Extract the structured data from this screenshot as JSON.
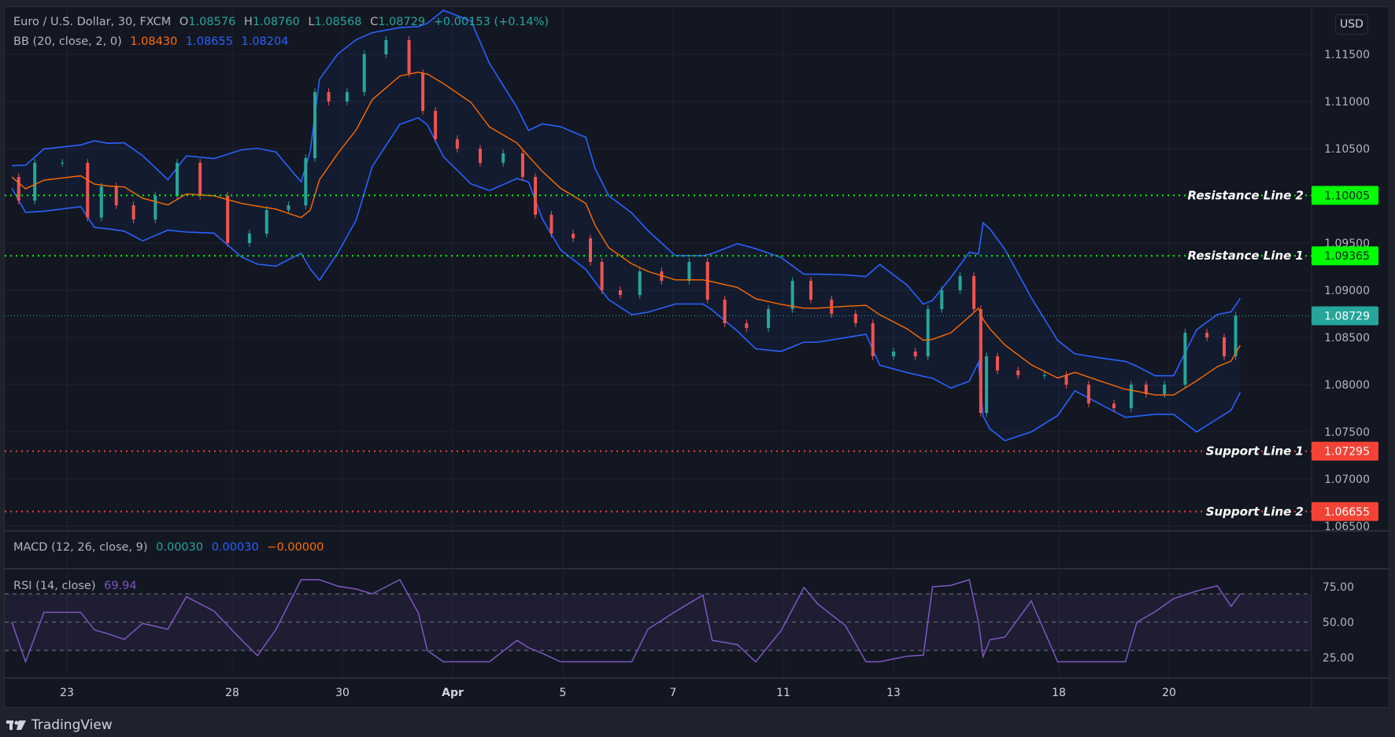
{
  "header": {
    "symbol": "Euro / U.S. Dollar, 30, FXCM",
    "open_label": "O",
    "open": "1.08576",
    "high_label": "H",
    "high": "1.08760",
    "low_label": "L",
    "low": "1.08568",
    "close_label": "C",
    "close": "1.08729",
    "change": "+0.00153 (+0.14%)"
  },
  "bb": {
    "label": "BB (20, close, 2, 0)",
    "basis": "1.08430",
    "upper": "1.08655",
    "lower": "1.08204"
  },
  "macd": {
    "label": "MACD (12, 26, close, 9)",
    "macd": "0.00030",
    "signal": "0.00030",
    "hist": "−0.00000"
  },
  "rsi": {
    "label": "RSI (14, close)",
    "value": "69.94"
  },
  "currency": "USD",
  "colors": {
    "up": "#26a69a",
    "down": "#ef5350",
    "bb_basis": "#ff6d00",
    "bb_band": "#2962ff",
    "rsi": "#7e57c2",
    "resistance": "#00ff00",
    "support": "#f44336",
    "last_price": "#26a69a"
  },
  "levels": [
    {
      "label": "Resistance Line 2",
      "price": "1.10005",
      "kind": "resistance"
    },
    {
      "label": "Resistance Line 1",
      "price": "1.09365",
      "kind": "resistance"
    },
    {
      "label": "Support Line 1",
      "price": "1.07295",
      "kind": "support"
    },
    {
      "label": "Support Line 2",
      "price": "1.06655",
      "kind": "support"
    }
  ],
  "last_price": "1.08729",
  "footer": {
    "brand": "TradingView"
  },
  "chart_data": {
    "type": "line",
    "title": "Euro / U.S. Dollar, 30, FXCM",
    "y_ticks": [
      "1.11500",
      "1.11000",
      "1.10500",
      "1.09500",
      "1.09000",
      "1.08500",
      "1.08000",
      "1.07500",
      "1.07000",
      "1.06500"
    ],
    "ylim": [
      1.065,
      1.1195
    ],
    "x_ticks": [
      {
        "label": "23",
        "date": "2023-03-23 00:00"
      },
      {
        "label": "28",
        "date": "2023-03-28 00:00"
      },
      {
        "label": "30",
        "date": "2023-03-30 00:00"
      },
      {
        "label": "Apr",
        "date": "2023-04-03 00:00"
      },
      {
        "label": "5",
        "date": "2023-04-05 00:00"
      },
      {
        "label": "7",
        "date": "2023-04-07 00:00"
      },
      {
        "label": "11",
        "date": "2023-04-11 00:00"
      },
      {
        "label": "13",
        "date": "2023-04-13 00:00"
      },
      {
        "label": "18",
        "date": "2023-04-18 00:00"
      },
      {
        "label": "20",
        "date": "2023-04-20 00:00"
      }
    ],
    "rsi_ticks": [
      "75.00",
      "50.00",
      "25.00"
    ],
    "rsi_band": [
      30,
      70
    ],
    "grid": true,
    "series": [
      {
        "x": "2023-03-22 00:00",
        "y": 1.102
      },
      {
        "x": "2023-03-22 06:00",
        "y": 1.0995
      },
      {
        "x": "2023-03-22 14:00",
        "y": 1.1035
      },
      {
        "x": "2023-03-23 06:00",
        "y": 1.1035
      },
      {
        "x": "2023-03-23 12:00",
        "y": 1.0977
      },
      {
        "x": "2023-03-23 18:00",
        "y": 1.101
      },
      {
        "x": "2023-03-24 01:00",
        "y": 1.099
      },
      {
        "x": "2023-03-24 09:00",
        "y": 1.0975
      },
      {
        "x": "2023-03-24 20:00",
        "y": 1.1
      },
      {
        "x": "2023-03-27 04:00",
        "y": 1.1035
      },
      {
        "x": "2023-03-27 16:00",
        "y": 1.1
      },
      {
        "x": "2023-03-28 04:00",
        "y": 1.095
      },
      {
        "x": "2023-03-28 11:00",
        "y": 1.096
      },
      {
        "x": "2023-03-28 19:00",
        "y": 1.0985
      },
      {
        "x": "2023-03-29 06:00",
        "y": 1.099
      },
      {
        "x": "2023-03-29 10:00",
        "y": 1.104
      },
      {
        "x": "2023-03-29 14:00",
        "y": 1.111
      },
      {
        "x": "2023-03-29 22:00",
        "y": 1.11
      },
      {
        "x": "2023-03-30 06:00",
        "y": 1.111
      },
      {
        "x": "2023-03-30 13:00",
        "y": 1.115
      },
      {
        "x": "2023-03-31 01:00",
        "y": 1.1165
      },
      {
        "x": "2023-03-31 09:00",
        "y": 1.113
      },
      {
        "x": "2023-03-31 13:00",
        "y": 1.109
      },
      {
        "x": "2023-03-31 20:00",
        "y": 1.106
      },
      {
        "x": "2023-04-03 08:00",
        "y": 1.105
      },
      {
        "x": "2023-04-03 16:00",
        "y": 1.1035
      },
      {
        "x": "2023-04-04 04:00",
        "y": 1.1045
      },
      {
        "x": "2023-04-04 09:00",
        "y": 1.102
      },
      {
        "x": "2023-04-04 15:00",
        "y": 1.098
      },
      {
        "x": "2023-04-04 23:00",
        "y": 1.096
      },
      {
        "x": "2023-04-05 10:00",
        "y": 1.0955
      },
      {
        "x": "2023-04-05 14:00",
        "y": 1.093
      },
      {
        "x": "2023-04-05 20:00",
        "y": 1.09
      },
      {
        "x": "2023-04-06 06:00",
        "y": 1.0895
      },
      {
        "x": "2023-04-06 13:00",
        "y": 1.092
      },
      {
        "x": "2023-04-07 01:00",
        "y": 1.091
      },
      {
        "x": "2023-04-07 13:00",
        "y": 1.093
      },
      {
        "x": "2023-04-07 17:00",
        "y": 1.089
      },
      {
        "x": "2023-04-10 04:00",
        "y": 1.0865
      },
      {
        "x": "2023-04-10 12:00",
        "y": 1.086
      },
      {
        "x": "2023-04-10 23:00",
        "y": 1.088
      },
      {
        "x": "2023-04-11 09:00",
        "y": 1.091
      },
      {
        "x": "2023-04-11 15:00",
        "y": 1.089
      },
      {
        "x": "2023-04-12 03:00",
        "y": 1.0875
      },
      {
        "x": "2023-04-12 12:00",
        "y": 1.0865
      },
      {
        "x": "2023-04-12 18:00",
        "y": 1.083
      },
      {
        "x": "2023-04-13 06:00",
        "y": 1.0835
      },
      {
        "x": "2023-04-13 13:00",
        "y": 1.083
      },
      {
        "x": "2023-04-13 17:00",
        "y": 1.088
      },
      {
        "x": "2023-04-14 01:00",
        "y": 1.09
      },
      {
        "x": "2023-04-14 09:00",
        "y": 1.0915
      },
      {
        "x": "2023-04-14 13:00",
        "y": 1.088
      },
      {
        "x": "2023-04-14 15:00",
        "y": 1.077
      },
      {
        "x": "2023-04-14 18:00",
        "y": 1.083
      },
      {
        "x": "2023-04-17 00:30",
        "y": 1.0815
      },
      {
        "x": "2023-04-17 12:00",
        "y": 1.081
      },
      {
        "x": "2023-04-17 23:30",
        "y": 1.081
      },
      {
        "x": "2023-04-18 07:00",
        "y": 1.08
      },
      {
        "x": "2023-04-18 19:00",
        "y": 1.078
      },
      {
        "x": "2023-04-19 05:00",
        "y": 1.0775
      },
      {
        "x": "2023-04-19 10:00",
        "y": 1.08
      },
      {
        "x": "2023-04-19 18:00",
        "y": 1.079
      },
      {
        "x": "2023-04-20 02:00",
        "y": 1.08
      },
      {
        "x": "2023-04-20 12:00",
        "y": 1.0855
      },
      {
        "x": "2023-04-20 21:00",
        "y": 1.085
      },
      {
        "x": "2023-04-21 03:00",
        "y": 1.083
      },
      {
        "x": "2023-04-21 07:00",
        "y": 1.0873
      }
    ]
  }
}
